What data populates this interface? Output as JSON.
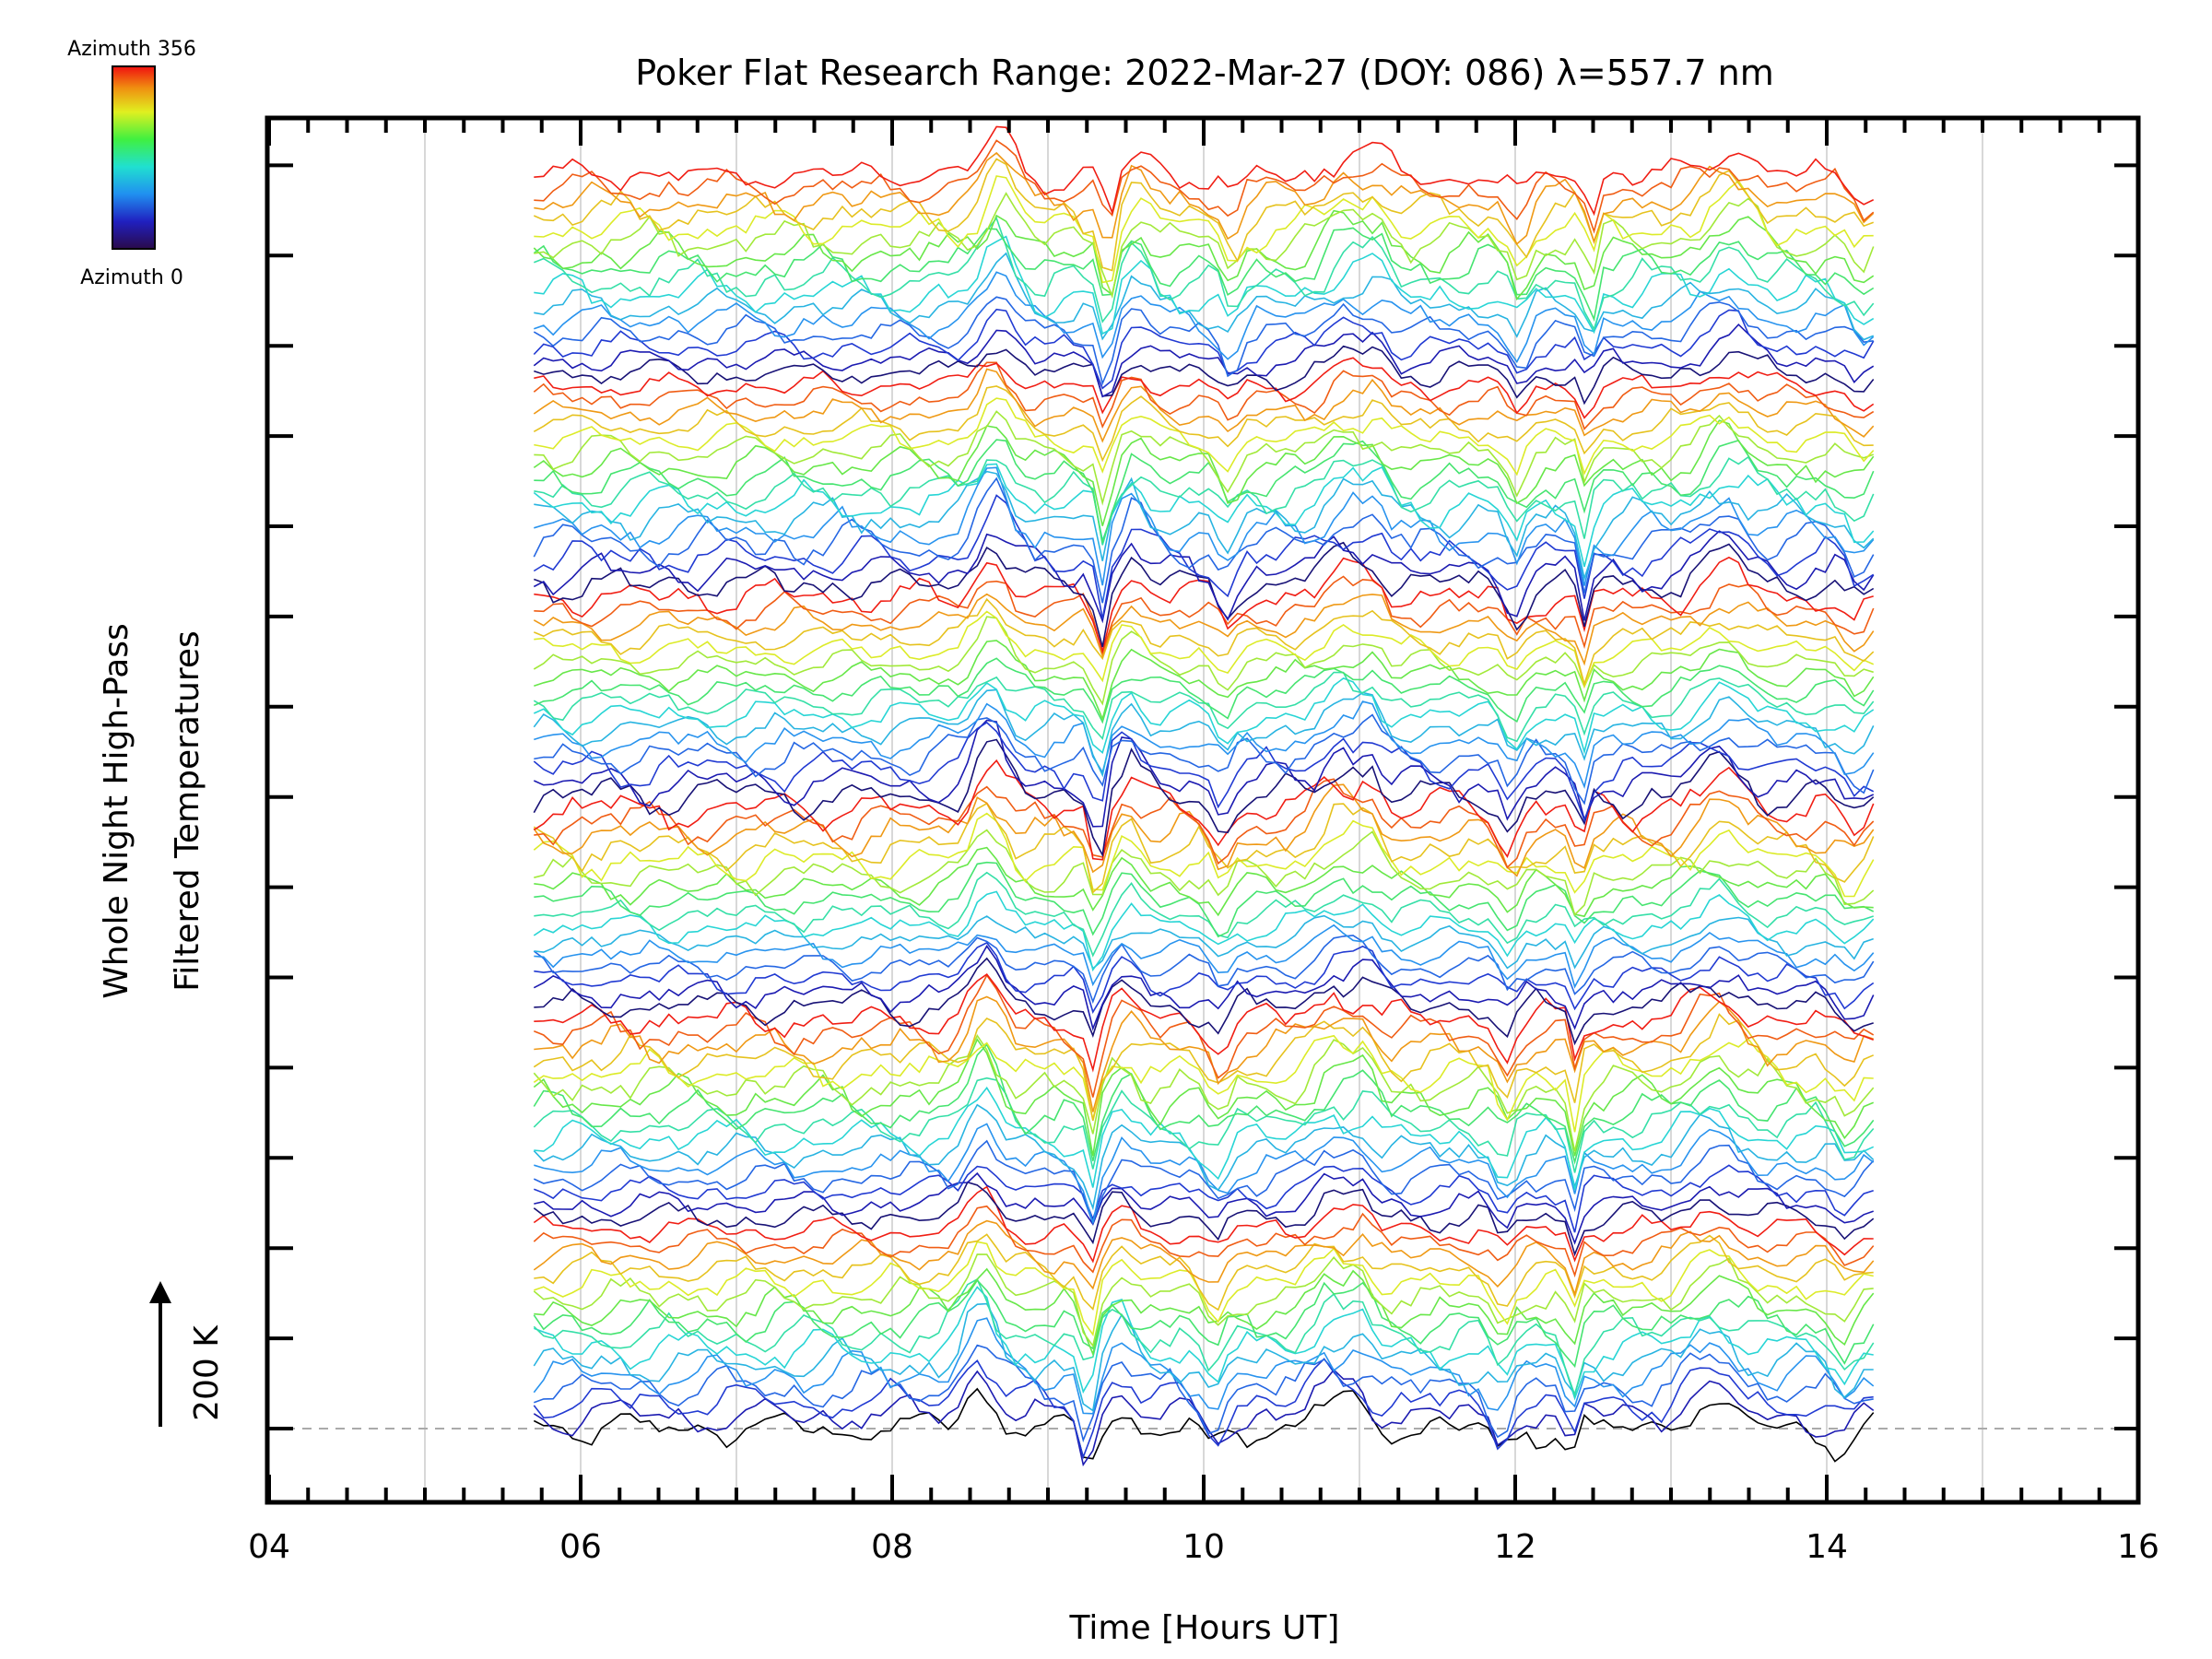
{
  "chart_data": {
    "type": "line",
    "title": "Poker Flat Research Range: 2022-Mar-27 (DOY: 086) λ=557.7 nm",
    "xlabel": "Time [Hours UT]",
    "ylabel_line1": "Whole Night High-Pass",
    "ylabel_line2": "Filtered Temperatures",
    "scale_label": "200 K",
    "colorbar": {
      "top_label": "Azimuth 356",
      "bottom_label": "Azimuth 0",
      "min": 0,
      "max": 356
    },
    "xlim": [
      4,
      16
    ],
    "x_ticks": [
      "04",
      "06",
      "08",
      "10",
      "12",
      "14",
      "16"
    ],
    "x_tick_values": [
      4,
      6,
      8,
      10,
      12,
      14,
      16
    ],
    "grid": "vertical lines every hour",
    "baseline_dashed": true,
    "time_range": [
      5.7,
      14.3
    ],
    "n_series": 96,
    "series_offset_note": "stacked traces offset vertically",
    "features": [
      {
        "t": 8.55,
        "amp": 1.6,
        "w": 0.13
      },
      {
        "t": 9.25,
        "amp": -1.8,
        "w": 0.05
      },
      {
        "t": 9.45,
        "amp": 0.9,
        "w": 0.1
      },
      {
        "t": 10.05,
        "amp": -1.0,
        "w": 0.08
      },
      {
        "t": 10.8,
        "amp": 1.0,
        "w": 0.15
      },
      {
        "t": 11.0,
        "amp": 0.8,
        "w": 0.08
      },
      {
        "t": 11.9,
        "amp": -1.1,
        "w": 0.08
      },
      {
        "t": 12.35,
        "amp": -1.6,
        "w": 0.04
      },
      {
        "t": 13.25,
        "amp": 1.0,
        "w": 0.18
      },
      {
        "t": 14.1,
        "amp": -0.8,
        "w": 0.1
      }
    ]
  }
}
